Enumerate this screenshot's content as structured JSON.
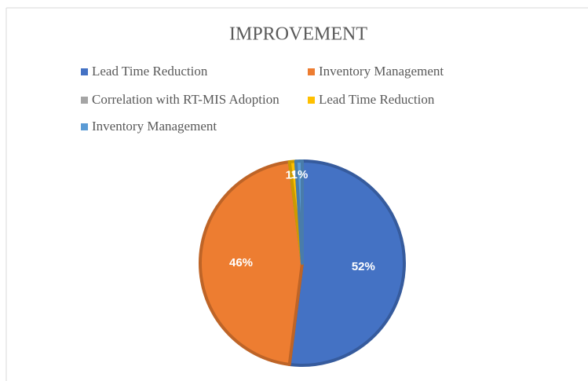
{
  "chart_data": {
    "type": "pie",
    "title": "IMPROVEMENT",
    "categories": [
      "Lead Time Reduction",
      "Inventory Management",
      "Correlation with RT-MIS Adoption",
      "Lead Time Reduction",
      "Inventory Management"
    ],
    "values": [
      52,
      46,
      0,
      1,
      1
    ],
    "value_labels": [
      "52%",
      "46%",
      null,
      "1%",
      "1%"
    ],
    "colors": [
      "#4472c4",
      "#ed7d31",
      "#a5a5a5",
      "#ffc000",
      "#5b9bd5"
    ],
    "legend": "top"
  }
}
